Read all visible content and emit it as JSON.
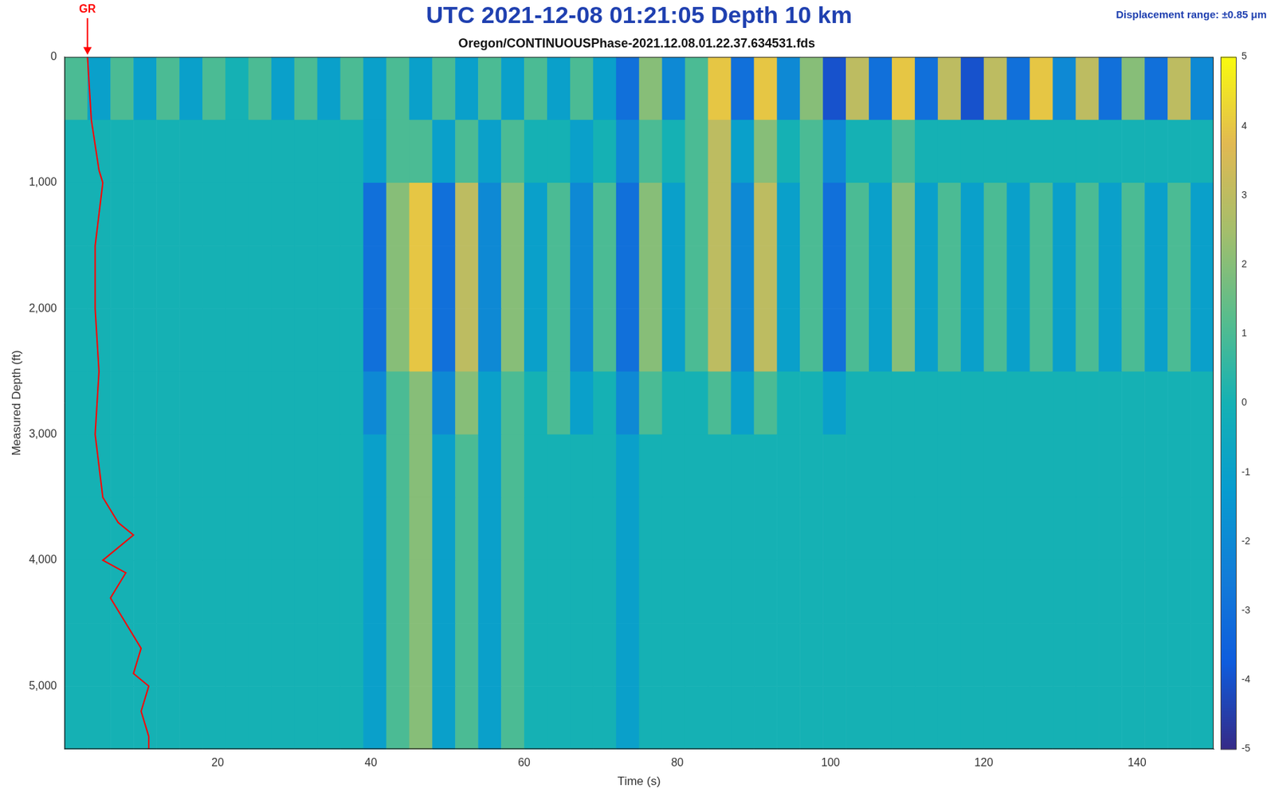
{
  "chart_data": {
    "type": "heatmap",
    "title": "UTC 2021-12-08 01:21:05 Depth 10 km",
    "subtitle": "Oregon/CONTINUOUSPhase-2021.12.08.01.22.37.634531.fds",
    "annotations": [
      "Displacement range: ±0.85 μm"
    ],
    "x_label": "Time (s)",
    "y_label": "Measured Depth (ft)",
    "xlim": [
      0,
      150
    ],
    "xticks": [
      20,
      40,
      60,
      80,
      100,
      120,
      140
    ],
    "ylim": [
      0,
      5500
    ],
    "yticks": [
      0,
      1000,
      2000,
      3000,
      4000,
      5000
    ],
    "grid": false,
    "x_edges": [
      0,
      3,
      6,
      9,
      12,
      15,
      18,
      21,
      24,
      27,
      30,
      33,
      36,
      39,
      42,
      45,
      48,
      51,
      54,
      57,
      60,
      63,
      66,
      69,
      72,
      75,
      78,
      81,
      84,
      87,
      90,
      93,
      96,
      99,
      102,
      105,
      108,
      111,
      114,
      117,
      120,
      123,
      126,
      129,
      132,
      135,
      138,
      141,
      144,
      147,
      150
    ],
    "y_edges": [
      0,
      500,
      1000,
      1500,
      2000,
      2500,
      3000,
      3500,
      4000,
      4500,
      5000,
      5500
    ],
    "z": [
      [
        1,
        -1,
        1,
        -1,
        1,
        -1,
        1,
        0,
        1,
        -1,
        1,
        -1,
        1,
        -1,
        1,
        -1,
        1,
        -1,
        1,
        -1,
        1,
        -1,
        1,
        -1,
        -3,
        2,
        -2,
        1,
        4,
        -3,
        4,
        -2,
        2,
        -4,
        3,
        -3,
        4,
        -3,
        3,
        -4,
        3,
        -3,
        4,
        -2,
        3,
        -3,
        2,
        -3,
        3,
        -2
      ],
      [
        0,
        0,
        0,
        0,
        0,
        0,
        0,
        0,
        0,
        0,
        0,
        0,
        0,
        -1,
        1,
        1,
        -1,
        1,
        -1,
        1,
        0,
        0,
        -1,
        0,
        -2,
        1,
        0,
        1,
        3,
        -1,
        2,
        0,
        1,
        -2,
        0,
        0,
        1,
        0,
        0,
        0,
        0,
        0,
        0,
        0,
        0,
        0,
        0,
        0,
        0,
        0
      ],
      [
        0,
        0,
        0,
        0,
        0,
        0,
        0,
        0,
        0,
        0,
        0,
        0,
        0,
        -3,
        2,
        4,
        -3,
        3,
        -2,
        2,
        -1,
        1,
        -2,
        1,
        -3,
        2,
        -1,
        1,
        3,
        -2,
        3,
        -1,
        1,
        -3,
        1,
        -1,
        2,
        -1,
        1,
        -1,
        1,
        -1,
        1,
        -1,
        1,
        -1,
        1,
        -1,
        1,
        -1
      ],
      [
        0,
        0,
        0,
        0,
        0,
        0,
        0,
        0,
        0,
        0,
        0,
        0,
        0,
        -3,
        2,
        4,
        -3,
        3,
        -2,
        2,
        -1,
        1,
        -2,
        1,
        -3,
        2,
        -1,
        1,
        3,
        -2,
        3,
        -1,
        1,
        -3,
        1,
        -1,
        2,
        -1,
        1,
        -1,
        1,
        -1,
        1,
        -1,
        1,
        -1,
        1,
        -1,
        1,
        -1
      ],
      [
        0,
        0,
        0,
        0,
        0,
        0,
        0,
        0,
        0,
        0,
        0,
        0,
        0,
        -3,
        2,
        4,
        -3,
        3,
        -2,
        2,
        -1,
        1,
        -2,
        1,
        -3,
        2,
        -1,
        1,
        3,
        -2,
        3,
        -1,
        1,
        -3,
        1,
        -1,
        2,
        -1,
        1,
        -1,
        1,
        -1,
        1,
        -1,
        1,
        -1,
        1,
        -1,
        1,
        -1
      ],
      [
        0,
        0,
        0,
        0,
        0,
        0,
        0,
        0,
        0,
        0,
        0,
        0,
        0,
        -2,
        1,
        2,
        -2,
        2,
        -1,
        1,
        0,
        1,
        -1,
        0,
        -2,
        1,
        0,
        0,
        1,
        -1,
        1,
        0,
        0,
        -1,
        0,
        0,
        0,
        0,
        0,
        0,
        0,
        0,
        0,
        0,
        0,
        0,
        0,
        0,
        0,
        0
      ],
      [
        0,
        0,
        0,
        0,
        0,
        0,
        0,
        0,
        0,
        0,
        0,
        0,
        0,
        -1,
        1,
        2,
        -1,
        1,
        -1,
        1,
        0,
        0,
        0,
        0,
        -1,
        0,
        0,
        0,
        0,
        0,
        0,
        0,
        0,
        0,
        0,
        0,
        0,
        0,
        0,
        0,
        0,
        0,
        0,
        0,
        0,
        0,
        0,
        0,
        0,
        0
      ],
      [
        0,
        0,
        0,
        0,
        0,
        0,
        0,
        0,
        0,
        0,
        0,
        0,
        0,
        -1,
        1,
        2,
        -1,
        1,
        -1,
        1,
        0,
        0,
        0,
        0,
        -1,
        0,
        0,
        0,
        0,
        0,
        0,
        0,
        0,
        0,
        0,
        0,
        0,
        0,
        0,
        0,
        0,
        0,
        0,
        0,
        0,
        0,
        0,
        0,
        0,
        0
      ],
      [
        0,
        0,
        0,
        0,
        0,
        0,
        0,
        0,
        0,
        0,
        0,
        0,
        0,
        -1,
        1,
        2,
        -1,
        1,
        -1,
        1,
        0,
        0,
        0,
        0,
        -1,
        0,
        0,
        0,
        0,
        0,
        0,
        0,
        0,
        0,
        0,
        0,
        0,
        0,
        0,
        0,
        0,
        0,
        0,
        0,
        0,
        0,
        0,
        0,
        0,
        0
      ],
      [
        0,
        0,
        0,
        0,
        0,
        0,
        0,
        0,
        0,
        0,
        0,
        0,
        0,
        -1,
        1,
        2,
        -1,
        1,
        -1,
        1,
        0,
        0,
        0,
        0,
        -1,
        0,
        0,
        0,
        0,
        0,
        0,
        0,
        0,
        0,
        0,
        0,
        0,
        0,
        0,
        0,
        0,
        0,
        0,
        0,
        0,
        0,
        0,
        0,
        0,
        0
      ],
      [
        0,
        0,
        0,
        0,
        0,
        0,
        0,
        0,
        0,
        0,
        0,
        0,
        0,
        -1,
        1,
        2,
        -1,
        1,
        -1,
        1,
        0,
        0,
        0,
        0,
        -1,
        0,
        0,
        0,
        0,
        0,
        0,
        0,
        0,
        0,
        0,
        0,
        0,
        0,
        0,
        0,
        0,
        0,
        0,
        0,
        0,
        0,
        0,
        0,
        0,
        0
      ]
    ],
    "colorbar": {
      "range": [
        -5,
        5
      ],
      "ticks": [
        -5,
        -4,
        -3,
        -2,
        -1,
        0,
        1,
        2,
        3,
        4,
        5
      ]
    },
    "series": [
      {
        "name": "GR",
        "color": "#ff0000",
        "type": "line",
        "x": [
          3,
          3.5,
          4.5,
          5,
          4,
          4,
          4.5,
          4,
          5,
          7,
          9,
          5,
          8,
          6,
          8,
          10,
          9,
          11,
          10,
          11,
          11
        ],
        "y": [
          0,
          500,
          900,
          1000,
          1500,
          2000,
          2500,
          3000,
          3500,
          3700,
          3800,
          4000,
          4100,
          4300,
          4500,
          4700,
          4900,
          5000,
          5200,
          5400,
          5500
        ]
      }
    ]
  }
}
